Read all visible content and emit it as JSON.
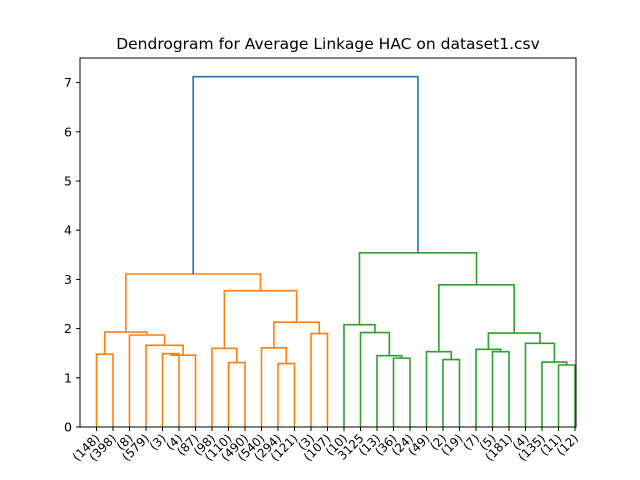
{
  "chart_data": {
    "type": "dendrogram",
    "title": "Dendrogram for Average Linkage HAC on dataset1.csv",
    "xlabel": "",
    "ylabel": "",
    "ylim": [
      0,
      7.5
    ],
    "yticks": [
      0,
      1,
      2,
      3,
      4,
      5,
      6,
      7
    ],
    "leaf_labels": [
      "(148)",
      "(398)",
      "(8)",
      "(579)",
      "(3)",
      "(4)",
      "(87)",
      "(98)",
      "(110)",
      "(490)",
      "(540)",
      "(294)",
      "(121)",
      "(3)",
      "(107)",
      "(10)",
      "3125",
      "(13)",
      "(36)",
      "(24)",
      "(49)",
      "(2)",
      "(19)",
      "(7)",
      "(5)",
      "(181)",
      "(4)",
      "(135)",
      "(11)",
      "(12)"
    ],
    "colors": {
      "cluster_a": "#ff7f0e",
      "cluster_b": "#2ca02c",
      "root": "#1f77b4"
    },
    "merges": [
      {
        "l": 0,
        "r": 1,
        "h": 1.48,
        "c": "cluster_a"
      },
      {
        "l": 4,
        "r": 5,
        "h": 1.49,
        "c": "cluster_a"
      },
      {
        "l": 31,
        "r": 6,
        "h": 1.46,
        "c": "cluster_a"
      },
      {
        "l": 3,
        "r": 32,
        "h": 1.66,
        "c": "cluster_a"
      },
      {
        "l": 2,
        "r": 33,
        "h": 1.87,
        "c": "cluster_a"
      },
      {
        "l": 30,
        "r": 34,
        "h": 1.93,
        "c": "cluster_a"
      },
      {
        "l": 8,
        "r": 9,
        "h": 1.31,
        "c": "cluster_a"
      },
      {
        "l": 7,
        "r": 36,
        "h": 1.6,
        "c": "cluster_a"
      },
      {
        "l": 11,
        "r": 12,
        "h": 1.29,
        "c": "cluster_a"
      },
      {
        "l": 10,
        "r": 38,
        "h": 1.61,
        "c": "cluster_a"
      },
      {
        "l": 13,
        "r": 14,
        "h": 1.9,
        "c": "cluster_a"
      },
      {
        "l": 39,
        "r": 40,
        "h": 2.13,
        "c": "cluster_a"
      },
      {
        "l": 37,
        "r": 41,
        "h": 2.77,
        "c": "cluster_a"
      },
      {
        "l": 35,
        "r": 42,
        "h": 3.11,
        "c": "cluster_a"
      },
      {
        "l": 18,
        "r": 19,
        "h": 1.4,
        "c": "cluster_b"
      },
      {
        "l": 17,
        "r": 44,
        "h": 1.45,
        "c": "cluster_b"
      },
      {
        "l": 16,
        "r": 45,
        "h": 1.92,
        "c": "cluster_b"
      },
      {
        "l": 15,
        "r": 46,
        "h": 2.08,
        "c": "cluster_b"
      },
      {
        "l": 21,
        "r": 22,
        "h": 1.37,
        "c": "cluster_b"
      },
      {
        "l": 20,
        "r": 48,
        "h": 1.53,
        "c": "cluster_b"
      },
      {
        "l": 24,
        "r": 25,
        "h": 1.53,
        "c": "cluster_b"
      },
      {
        "l": 23,
        "r": 50,
        "h": 1.58,
        "c": "cluster_b"
      },
      {
        "l": 28,
        "r": 29,
        "h": 1.26,
        "c": "cluster_b"
      },
      {
        "l": 27,
        "r": 52,
        "h": 1.32,
        "c": "cluster_b"
      },
      {
        "l": 26,
        "r": 53,
        "h": 1.7,
        "c": "cluster_b"
      },
      {
        "l": 51,
        "r": 54,
        "h": 1.91,
        "c": "cluster_b"
      },
      {
        "l": 49,
        "r": 55,
        "h": 2.89,
        "c": "cluster_b"
      },
      {
        "l": 47,
        "r": 56,
        "h": 3.54,
        "c": "cluster_b"
      },
      {
        "l": 43,
        "r": 57,
        "h": 7.12,
        "c": "root"
      }
    ]
  }
}
